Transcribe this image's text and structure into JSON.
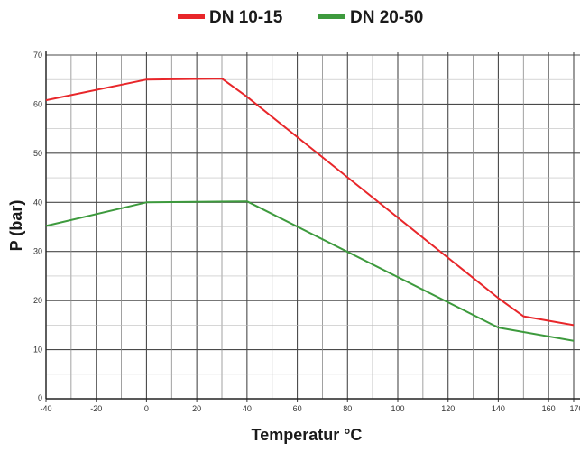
{
  "chart_data": {
    "type": "line",
    "title": "",
    "xlabel": "Temperatur °C",
    "ylabel": "P (bar)",
    "xlim": [
      -40,
      170
    ],
    "ylim": [
      0,
      70
    ],
    "x_ticks": [
      -40,
      -20,
      0,
      20,
      40,
      60,
      80,
      100,
      120,
      140,
      160,
      170
    ],
    "y_ticks": [
      0,
      10,
      20,
      30,
      40,
      50,
      60,
      70
    ],
    "grid": true,
    "legend_position": "top-center",
    "series": [
      {
        "name": "DN 10-15",
        "color": "#e8262a",
        "x": [
          -40,
          0,
          30,
          40,
          140,
          150,
          170
        ],
        "y": [
          60.8,
          65,
          65.2,
          61.5,
          20.5,
          16.8,
          15
        ]
      },
      {
        "name": "DN 20-50",
        "color": "#3d9a3d",
        "x": [
          -40,
          0,
          40,
          140,
          170
        ],
        "y": [
          35.2,
          40,
          40.2,
          14.5,
          11.8
        ]
      }
    ]
  }
}
